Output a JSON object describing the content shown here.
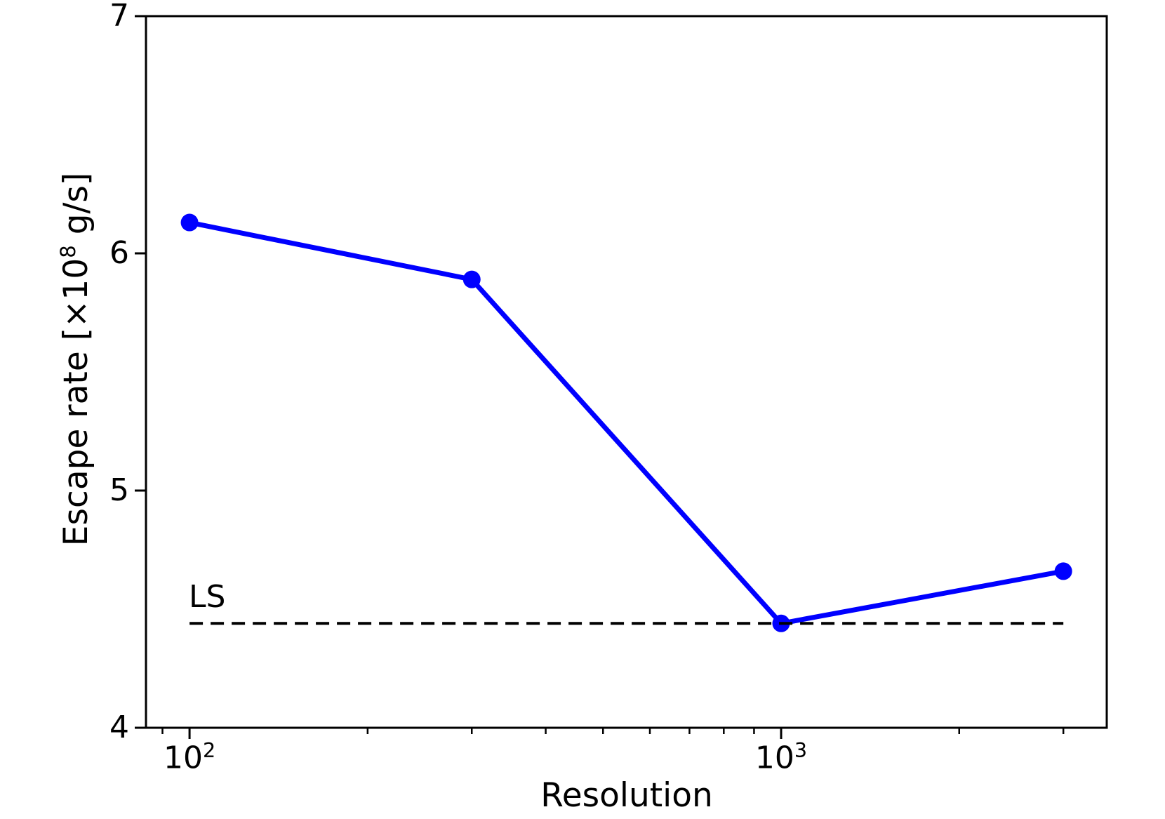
{
  "chart_data": {
    "type": "line",
    "title": "",
    "xlabel": "Resolution",
    "ylabel": {
      "prefix": "Escape rate [×10",
      "sup": "8",
      "suffix": " g/s]"
    },
    "x_scale": "log",
    "y_scale": "linear",
    "xlim": [
      84.4,
      3552
    ],
    "ylim": [
      4,
      7
    ],
    "grid": false,
    "legend_position": "none",
    "y_ticks": [
      {
        "value": 4,
        "label": "4"
      },
      {
        "value": 5,
        "label": "5"
      },
      {
        "value": 6,
        "label": "6"
      },
      {
        "value": 7,
        "label": "7"
      }
    ],
    "x_major_ticks": [
      {
        "value": 100,
        "base": "10",
        "exp": "2"
      },
      {
        "value": 1000,
        "base": "10",
        "exp": "3"
      }
    ],
    "x_minor_ticks": [
      90,
      200,
      300,
      400,
      500,
      600,
      700,
      800,
      900,
      2000,
      3000
    ],
    "series": [
      {
        "name": "escape-rate",
        "color": "#0000ff",
        "marker": "circle",
        "line_width": 7,
        "marker_radius": 12.5,
        "x": [
          100,
          300,
          1000,
          3000
        ],
        "y": [
          6.13,
          5.89,
          4.44,
          4.66
        ]
      }
    ],
    "reference_line": {
      "label": "LS",
      "y": 4.44,
      "x_start": 100,
      "x_end": 3000,
      "color": "#000000",
      "style": "dashed"
    },
    "axis_color": "#000000"
  }
}
